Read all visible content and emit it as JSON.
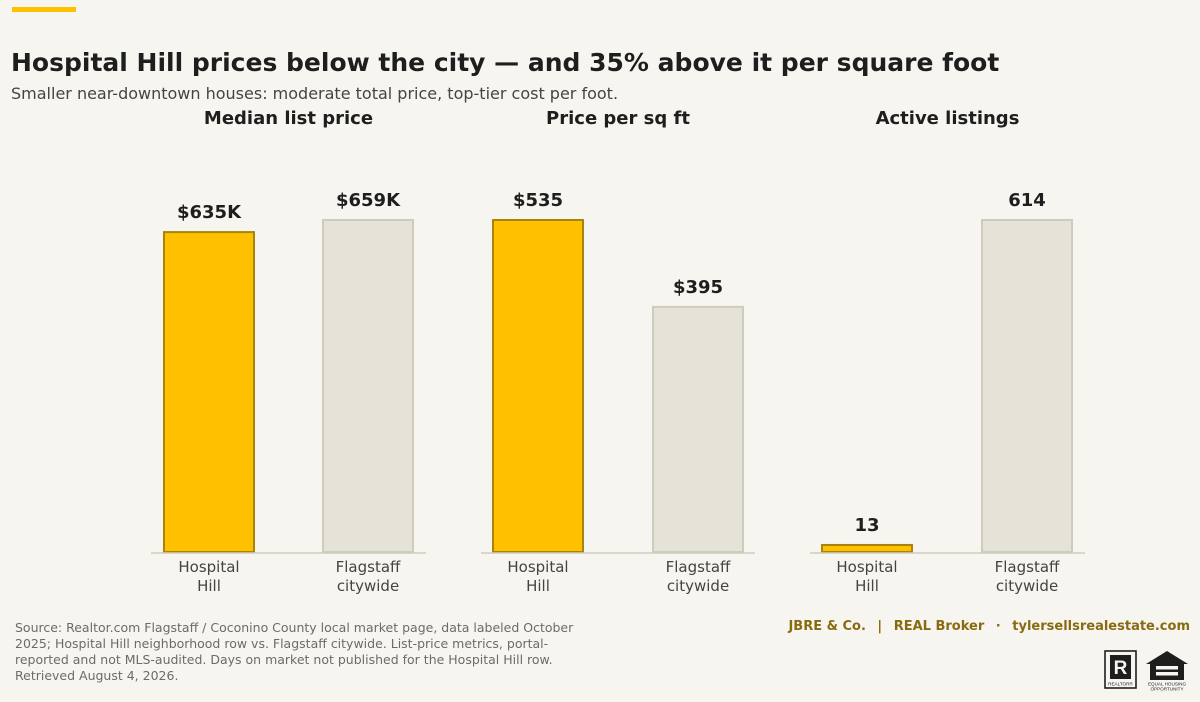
{
  "header": {
    "title": "Hospital Hill prices below the city — and 35% above it per square foot",
    "subtitle": "Smaller near-downtown houses: moderate total price, top-tier cost per foot."
  },
  "colors": {
    "highlight": "#ffc000",
    "highlight_stroke": "#a8840a",
    "neutral": "#e5e2d8",
    "neutral_stroke": "#cfcbbd",
    "baseline": "#cfcbbd",
    "brand": "#8a6a10"
  },
  "chart_data": [
    {
      "type": "bar",
      "title": "Median list price",
      "categories": [
        [
          "Hospital",
          "Hill"
        ],
        [
          "Flagstaff",
          "citywide"
        ]
      ],
      "values": [
        635,
        659
      ],
      "value_labels": [
        "$635K",
        "$659K"
      ],
      "unit": "$K",
      "ylim": [
        0,
        659
      ],
      "grid": false,
      "highlight": [
        true,
        false
      ]
    },
    {
      "type": "bar",
      "title": "Price per sq ft",
      "categories": [
        [
          "Hospital",
          "Hill"
        ],
        [
          "Flagstaff",
          "citywide"
        ]
      ],
      "values": [
        535,
        395
      ],
      "value_labels": [
        "$535",
        "$395"
      ],
      "unit": "$",
      "ylim": [
        0,
        535
      ],
      "grid": false,
      "highlight": [
        true,
        false
      ]
    },
    {
      "type": "bar",
      "title": "Active listings",
      "categories": [
        [
          "Hospital",
          "Hill"
        ],
        [
          "Flagstaff",
          "citywide"
        ]
      ],
      "values": [
        13,
        614
      ],
      "value_labels": [
        "13",
        "614"
      ],
      "ylim": [
        0,
        614
      ],
      "grid": false,
      "highlight": [
        true,
        false
      ]
    }
  ],
  "footer": {
    "source": "Source: Realtor.com Flagstaff / Coconino County local market page, data labeled October 2025; Hospital Hill neighborhood row vs. Flagstaff citywide. List-price metrics, portal-reported and not MLS-audited. Days on market not published for the Hospital Hill row. Retrieved August 4, 2026.",
    "brand_company": "JBRE & Co.",
    "brand_sep1": "|",
    "brand_broker": "REAL Broker",
    "brand_sep2": "·",
    "brand_site": "tylersellsrealestate.com",
    "realtor_logo": "R",
    "realtor_mark": "REALTOR®",
    "eho_line1": "EQUAL HOUSING",
    "eho_line2": "OPPORTUNITY"
  }
}
